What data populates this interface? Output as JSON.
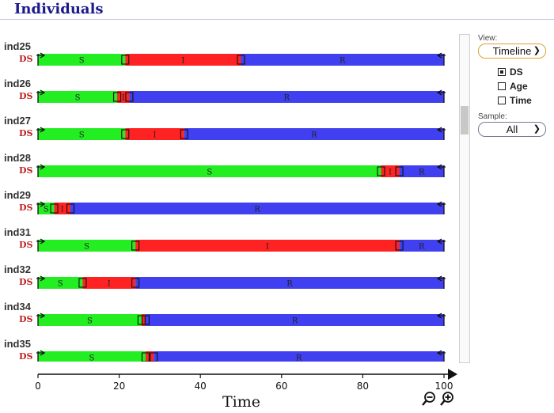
{
  "title": "Individuals",
  "axis": {
    "label": "Time",
    "min": 0,
    "max": 100,
    "ticks": [
      0,
      20,
      40,
      60,
      80,
      100
    ]
  },
  "state_colors": {
    "S": "#22ee22",
    "I": "#ff2222",
    "R": "#4040f0"
  },
  "variable": "DS",
  "individuals": [
    {
      "name": "ind25",
      "segments": [
        {
          "state": "S",
          "start": 0,
          "end": 21.5
        },
        {
          "state": "I",
          "start": 21.5,
          "end": 50
        },
        {
          "state": "R",
          "start": 50,
          "end": 100
        }
      ]
    },
    {
      "name": "ind26",
      "segments": [
        {
          "state": "S",
          "start": 0,
          "end": 19.5
        },
        {
          "state": "I",
          "start": 19.5,
          "end": 22.5
        },
        {
          "state": "R",
          "start": 22.5,
          "end": 100
        }
      ]
    },
    {
      "name": "ind27",
      "segments": [
        {
          "state": "S",
          "start": 0,
          "end": 21.5
        },
        {
          "state": "I",
          "start": 21.5,
          "end": 36
        },
        {
          "state": "R",
          "start": 36,
          "end": 100
        }
      ]
    },
    {
      "name": "ind28",
      "segments": [
        {
          "state": "S",
          "start": 0,
          "end": 84.5
        },
        {
          "state": "I",
          "start": 84.5,
          "end": 89
        },
        {
          "state": "R",
          "start": 89,
          "end": 100
        }
      ]
    },
    {
      "name": "ind29",
      "segments": [
        {
          "state": "S",
          "start": 0,
          "end": 4
        },
        {
          "state": "I",
          "start": 4,
          "end": 8
        },
        {
          "state": "R",
          "start": 8,
          "end": 100
        }
      ]
    },
    {
      "name": "ind31",
      "segments": [
        {
          "state": "S",
          "start": 0,
          "end": 24
        },
        {
          "state": "I",
          "start": 24,
          "end": 89
        },
        {
          "state": "R",
          "start": 89,
          "end": 100
        }
      ]
    },
    {
      "name": "ind32",
      "segments": [
        {
          "state": "S",
          "start": 0,
          "end": 11
        },
        {
          "state": "I",
          "start": 11,
          "end": 24
        },
        {
          "state": "R",
          "start": 24,
          "end": 100
        }
      ]
    },
    {
      "name": "ind34",
      "segments": [
        {
          "state": "S",
          "start": 0,
          "end": 25.5
        },
        {
          "state": "I",
          "start": 25.5,
          "end": 26.5
        },
        {
          "state": "R",
          "start": 26.5,
          "end": 100
        }
      ]
    },
    {
      "name": "ind35",
      "segments": [
        {
          "state": "S",
          "start": 0,
          "end": 26.5
        },
        {
          "state": "I",
          "start": 26.5,
          "end": 28.5
        },
        {
          "state": "R",
          "start": 28.5,
          "end": 100
        }
      ]
    }
  ],
  "controls": {
    "view_label": "View:",
    "view_value": "Timeline",
    "checkboxes": [
      {
        "label": "DS",
        "checked": true
      },
      {
        "label": "Age",
        "checked": false
      },
      {
        "label": "Time",
        "checked": false
      }
    ],
    "sample_label": "Sample:",
    "sample_value": "All"
  },
  "icons": {
    "zoom_out": "zoom-out-icon",
    "zoom_in": "zoom-in-icon"
  }
}
